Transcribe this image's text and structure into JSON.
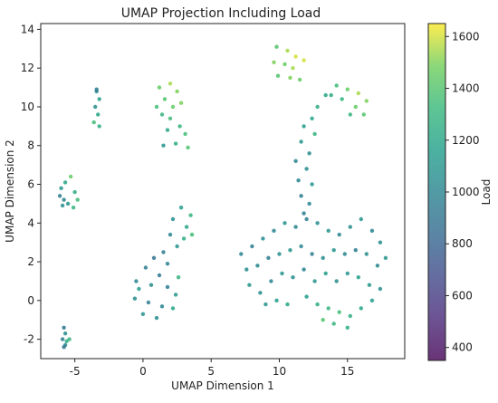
{
  "chart_data": {
    "type": "scatter",
    "title": "UMAP Projection Including Load",
    "xlabel": "UMAP Dimension 1",
    "ylabel": "UMAP Dimension 2",
    "xlim": [
      -7.5,
      19.2
    ],
    "ylim": [
      -3.0,
      14.3
    ],
    "xticks": [
      -5,
      0,
      5,
      10,
      15
    ],
    "yticks": [
      -2,
      0,
      2,
      4,
      6,
      8,
      10,
      12,
      14
    ],
    "grid": false,
    "colorbar": {
      "label": "Load",
      "range": [
        350,
        1650
      ],
      "ticks": [
        400,
        600,
        800,
        1000,
        1200,
        1400,
        1600
      ],
      "colormap": "viridis",
      "alpha": 0.8
    },
    "clusters": [
      {
        "name": "small-left-bottom",
        "points": [
          [
            -5.8,
            -1.4,
            900
          ],
          [
            -5.7,
            -1.7,
            1050
          ],
          [
            -5.9,
            -2.0,
            950
          ],
          [
            -5.6,
            -2.1,
            1250
          ],
          [
            -5.8,
            -2.4,
            880
          ],
          [
            -5.4,
            -2.0,
            1300
          ],
          [
            -5.7,
            -2.3,
            1000
          ]
        ]
      },
      {
        "name": "left-mid",
        "points": [
          [
            -6.0,
            5.8,
            1100
          ],
          [
            -5.7,
            6.1,
            1200
          ],
          [
            -5.3,
            6.4,
            1450
          ],
          [
            -5.0,
            5.6,
            1250
          ],
          [
            -5.8,
            5.2,
            1000
          ],
          [
            -5.5,
            5.0,
            1100
          ],
          [
            -5.1,
            4.8,
            1300
          ],
          [
            -4.8,
            5.2,
            1350
          ],
          [
            -6.1,
            5.4,
            950
          ],
          [
            -5.9,
            4.9,
            1050
          ]
        ]
      },
      {
        "name": "left-top-strip",
        "points": [
          [
            -3.4,
            10.8,
            1000
          ],
          [
            -3.2,
            10.4,
            1150
          ],
          [
            -3.5,
            10.0,
            1050
          ],
          [
            -3.3,
            9.6,
            1200
          ],
          [
            -3.6,
            9.2,
            1350
          ],
          [
            -3.2,
            9.0,
            1250
          ],
          [
            -3.4,
            10.9,
            950
          ]
        ]
      },
      {
        "name": "upper-mid-blob",
        "points": [
          [
            1.2,
            11.0,
            1450
          ],
          [
            2.0,
            11.2,
            1550
          ],
          [
            2.5,
            10.8,
            1500
          ],
          [
            1.6,
            10.4,
            1400
          ],
          [
            1.0,
            10.0,
            1350
          ],
          [
            2.2,
            10.0,
            1450
          ],
          [
            2.8,
            10.2,
            1500
          ],
          [
            1.4,
            9.6,
            1300
          ],
          [
            2.0,
            9.4,
            1350
          ],
          [
            1.8,
            8.8,
            1200
          ],
          [
            2.7,
            9.0,
            1300
          ],
          [
            3.1,
            8.6,
            1350
          ],
          [
            3.3,
            7.9,
            1400
          ],
          [
            1.5,
            8.0,
            1100
          ],
          [
            2.4,
            8.1,
            1250
          ]
        ]
      },
      {
        "name": "center-lower-cluster",
        "points": [
          [
            2.8,
            4.8,
            1150
          ],
          [
            3.5,
            4.4,
            1300
          ],
          [
            2.2,
            4.2,
            1050
          ],
          [
            3.2,
            3.8,
            1200
          ],
          [
            2.0,
            3.4,
            1000
          ],
          [
            3.0,
            3.2,
            1250
          ],
          [
            2.5,
            2.8,
            1100
          ],
          [
            1.5,
            2.5,
            950
          ],
          [
            0.8,
            2.2,
            900
          ],
          [
            1.8,
            1.9,
            1000
          ],
          [
            0.2,
            1.7,
            950
          ],
          [
            1.2,
            1.3,
            900
          ],
          [
            -0.5,
            1.0,
            1000
          ],
          [
            0.6,
            0.8,
            1050
          ],
          [
            1.8,
            0.7,
            950
          ],
          [
            2.4,
            0.3,
            1100
          ],
          [
            -0.6,
            0.1,
            1050
          ],
          [
            0.4,
            -0.1,
            950
          ],
          [
            1.4,
            -0.3,
            1000
          ],
          [
            2.2,
            -0.4,
            1200
          ],
          [
            0.0,
            -0.7,
            1100
          ],
          [
            1.0,
            -0.9,
            1050
          ],
          [
            -0.3,
            0.6,
            1150
          ],
          [
            2.6,
            1.2,
            1300
          ],
          [
            3.6,
            3.4,
            1350
          ]
        ]
      },
      {
        "name": "right-top-left-blob",
        "points": [
          [
            9.8,
            13.1,
            1400
          ],
          [
            10.6,
            12.9,
            1550
          ],
          [
            11.2,
            12.6,
            1600
          ],
          [
            9.6,
            12.3,
            1500
          ],
          [
            10.4,
            12.2,
            1450
          ],
          [
            11.0,
            12.0,
            1550
          ],
          [
            9.9,
            11.6,
            1400
          ],
          [
            10.8,
            11.5,
            1500
          ],
          [
            11.5,
            11.4,
            1450
          ],
          [
            11.8,
            12.4,
            1600
          ]
        ]
      },
      {
        "name": "right-top-right-blob",
        "points": [
          [
            14.2,
            11.1,
            1350
          ],
          [
            15.0,
            10.9,
            1450
          ],
          [
            15.8,
            10.7,
            1550
          ],
          [
            16.4,
            10.3,
            1500
          ],
          [
            14.6,
            10.4,
            1300
          ],
          [
            15.6,
            10.0,
            1450
          ],
          [
            16.2,
            9.6,
            1400
          ],
          [
            13.8,
            10.6,
            1250
          ],
          [
            15.2,
            9.6,
            1300
          ]
        ]
      },
      {
        "name": "right-neck",
        "points": [
          [
            13.4,
            10.6,
            1200
          ],
          [
            12.8,
            10.0,
            1250
          ],
          [
            12.4,
            9.4,
            1200
          ],
          [
            11.8,
            9.0,
            1150
          ],
          [
            12.6,
            8.6,
            1300
          ],
          [
            11.6,
            8.2,
            1100
          ],
          [
            12.2,
            7.6,
            1050
          ],
          [
            11.2,
            7.2,
            1000
          ],
          [
            12.0,
            6.8,
            1050
          ],
          [
            11.4,
            6.2,
            1000
          ],
          [
            12.4,
            6.0,
            1100
          ],
          [
            11.6,
            5.4,
            950
          ],
          [
            12.2,
            5.0,
            1000
          ],
          [
            11.8,
            4.5,
            950
          ]
        ]
      },
      {
        "name": "big-right-cluster",
        "points": [
          [
            7.2,
            2.4,
            1000
          ],
          [
            8.0,
            2.8,
            950
          ],
          [
            8.8,
            3.2,
            1050
          ],
          [
            9.6,
            3.6,
            1000
          ],
          [
            10.4,
            4.0,
            1100
          ],
          [
            11.2,
            3.8,
            1000
          ],
          [
            12.0,
            4.2,
            950
          ],
          [
            12.8,
            4.0,
            1050
          ],
          [
            13.6,
            3.6,
            1100
          ],
          [
            14.4,
            3.4,
            1000
          ],
          [
            15.2,
            3.8,
            1050
          ],
          [
            16.0,
            4.2,
            1100
          ],
          [
            16.8,
            3.6,
            1000
          ],
          [
            17.4,
            3.0,
            1050
          ],
          [
            17.8,
            2.2,
            1100
          ],
          [
            7.6,
            1.6,
            1050
          ],
          [
            8.4,
            1.8,
            1000
          ],
          [
            9.2,
            2.2,
            950
          ],
          [
            10.0,
            2.4,
            1050
          ],
          [
            10.8,
            2.6,
            1100
          ],
          [
            11.6,
            2.8,
            1000
          ],
          [
            12.4,
            2.4,
            950
          ],
          [
            13.2,
            2.2,
            1050
          ],
          [
            14.0,
            2.6,
            1100
          ],
          [
            14.8,
            2.4,
            1000
          ],
          [
            15.6,
            2.6,
            950
          ],
          [
            16.4,
            2.4,
            1050
          ],
          [
            17.2,
            1.8,
            1000
          ],
          [
            7.8,
            0.8,
            1100
          ],
          [
            8.6,
            0.4,
            1050
          ],
          [
            9.4,
            1.0,
            1000
          ],
          [
            10.2,
            1.4,
            1100
          ],
          [
            11.0,
            1.2,
            1050
          ],
          [
            11.8,
            1.6,
            1000
          ],
          [
            12.6,
            1.0,
            1100
          ],
          [
            13.4,
            1.4,
            1150
          ],
          [
            14.2,
            1.0,
            1050
          ],
          [
            15.0,
            1.4,
            1100
          ],
          [
            15.8,
            1.2,
            1150
          ],
          [
            16.6,
            0.8,
            1100
          ],
          [
            17.4,
            0.6,
            1050
          ],
          [
            9.0,
            -0.2,
            1100
          ],
          [
            9.8,
            0.0,
            1150
          ],
          [
            10.6,
            -0.2,
            1200
          ],
          [
            12.0,
            0.2,
            1150
          ],
          [
            12.8,
            -0.2,
            1250
          ],
          [
            13.6,
            -0.4,
            1300
          ],
          [
            14.4,
            -0.6,
            1350
          ],
          [
            15.2,
            -0.8,
            1250
          ],
          [
            16.0,
            -0.4,
            1200
          ],
          [
            16.8,
            0.0,
            1150
          ],
          [
            13.2,
            -1.0,
            1400
          ],
          [
            14.0,
            -1.2,
            1300
          ],
          [
            15.0,
            -1.4,
            1250
          ]
        ]
      }
    ]
  }
}
